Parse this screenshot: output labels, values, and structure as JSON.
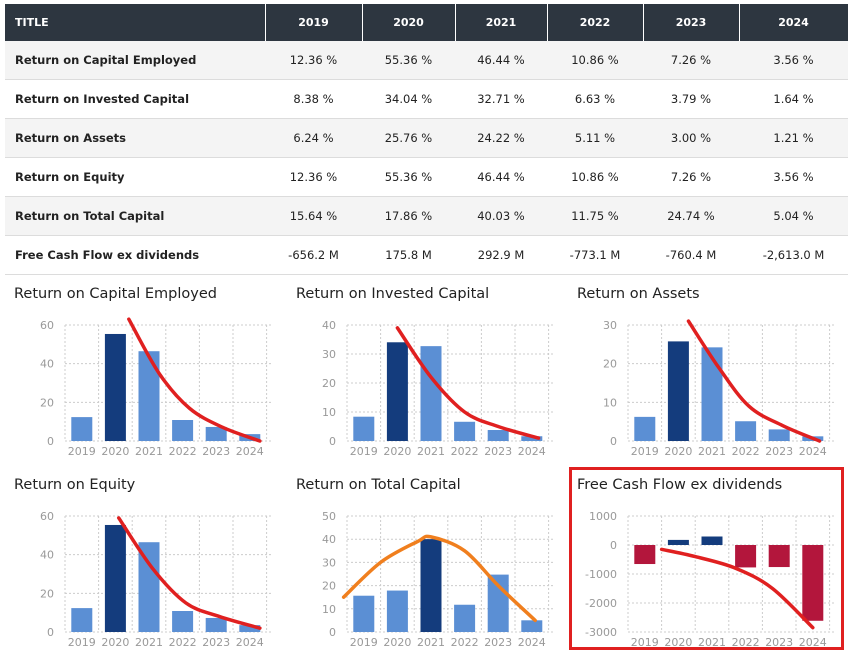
{
  "table": {
    "headers": [
      "TITLE",
      "2019",
      "2020",
      "2021",
      "2022",
      "2023",
      "2024"
    ],
    "rows": [
      {
        "label": "Return on Capital Employed",
        "cells": [
          "12.36 %",
          "55.36 %",
          "46.44 %",
          "10.86 %",
          "7.26 %",
          "3.56 %"
        ]
      },
      {
        "label": "Return on Invested Capital",
        "cells": [
          "8.38 %",
          "34.04 %",
          "32.71 %",
          "6.63 %",
          "3.79 %",
          "1.64 %"
        ]
      },
      {
        "label": "Return on Assets",
        "cells": [
          "6.24 %",
          "25.76 %",
          "24.22 %",
          "5.11 %",
          "3.00 %",
          "1.21 %"
        ]
      },
      {
        "label": "Return on Equity",
        "cells": [
          "12.36 %",
          "55.36 %",
          "46.44 %",
          "10.86 %",
          "7.26 %",
          "3.56 %"
        ]
      },
      {
        "label": "Return on Total Capital",
        "cells": [
          "15.64 %",
          "17.86 %",
          "40.03 %",
          "11.75 %",
          "24.74 %",
          "5.04 %"
        ]
      },
      {
        "label": "Free Cash Flow ex dividends",
        "cells": [
          "-656.2 M",
          "175.8 M",
          "292.9 M",
          "-773.1 M",
          "-760.4 M",
          "-2,613.0 M"
        ]
      }
    ]
  },
  "colors": {
    "bar_light": "#5b8fd4",
    "bar_dark": "#143c7d",
    "bar_negative": "#b3163c",
    "trend_red": "#e02020",
    "trend_orange": "#f07f1e",
    "grid": "#cccccc",
    "highlight_border": "#e02020"
  },
  "chart_data": [
    {
      "type": "bar",
      "title": "Return on Capital Employed",
      "categories": [
        "2019",
        "2020",
        "2021",
        "2022",
        "2023",
        "2024"
      ],
      "values": [
        12.36,
        55.36,
        46.44,
        10.86,
        7.26,
        3.56
      ],
      "highlight_index": 1,
      "yticks": [
        0,
        20,
        40,
        60
      ],
      "ylim": [
        0,
        60
      ],
      "grid": true,
      "trend": {
        "color": "red",
        "points": [
          [
            1.4,
            63
          ],
          [
            2.3,
            35
          ],
          [
            3.2,
            17
          ],
          [
            4.2,
            7
          ],
          [
            5.3,
            0
          ]
        ]
      }
    },
    {
      "type": "bar",
      "title": "Return on Invested Capital",
      "categories": [
        "2019",
        "2020",
        "2021",
        "2022",
        "2023",
        "2024"
      ],
      "values": [
        8.38,
        34.04,
        32.71,
        6.63,
        3.79,
        1.64
      ],
      "highlight_index": 1,
      "yticks": [
        0,
        10,
        20,
        30,
        40
      ],
      "ylim": [
        0,
        40
      ],
      "grid": true,
      "trend": {
        "color": "red",
        "points": [
          [
            1.0,
            39
          ],
          [
            2.0,
            22
          ],
          [
            3.0,
            10
          ],
          [
            4.0,
            5
          ],
          [
            5.2,
            1
          ]
        ]
      }
    },
    {
      "type": "bar",
      "title": "Return on Assets",
      "categories": [
        "2019",
        "2020",
        "2021",
        "2022",
        "2023",
        "2024"
      ],
      "values": [
        6.24,
        25.76,
        24.22,
        5.11,
        3.0,
        1.21
      ],
      "highlight_index": 1,
      "yticks": [
        0,
        10,
        20,
        30
      ],
      "ylim": [
        0,
        30
      ],
      "grid": true,
      "trend": {
        "color": "red",
        "points": [
          [
            1.3,
            31
          ],
          [
            2.2,
            19
          ],
          [
            3.1,
            9
          ],
          [
            4.1,
            4
          ],
          [
            5.2,
            0
          ]
        ]
      }
    },
    {
      "type": "bar",
      "title": "Return on Equity",
      "categories": [
        "2019",
        "2020",
        "2021",
        "2022",
        "2023",
        "2024"
      ],
      "values": [
        12.36,
        55.36,
        46.44,
        10.86,
        7.26,
        3.56
      ],
      "highlight_index": 1,
      "yticks": [
        0,
        20,
        40,
        60
      ],
      "ylim": [
        0,
        60
      ],
      "grid": true,
      "trend": {
        "color": "red",
        "points": [
          [
            1.1,
            59
          ],
          [
            2.1,
            33
          ],
          [
            3.1,
            15
          ],
          [
            4.1,
            8
          ],
          [
            5.3,
            2
          ]
        ]
      }
    },
    {
      "type": "bar",
      "title": "Return on Total Capital",
      "categories": [
        "2019",
        "2020",
        "2021",
        "2022",
        "2023",
        "2024"
      ],
      "values": [
        15.64,
        17.86,
        40.03,
        11.75,
        24.74,
        5.04
      ],
      "highlight_index": 2,
      "yticks": [
        0,
        10,
        20,
        30,
        40,
        50
      ],
      "ylim": [
        0,
        50
      ],
      "grid": true,
      "trend": {
        "color": "orange",
        "points": [
          [
            -0.6,
            15
          ],
          [
            0.5,
            30
          ],
          [
            1.6,
            39
          ],
          [
            2.0,
            41
          ],
          [
            3.0,
            35
          ],
          [
            4.0,
            20
          ],
          [
            5.1,
            5
          ]
        ]
      }
    },
    {
      "type": "bar",
      "title": "Free Cash Flow ex dividends",
      "categories": [
        "2019",
        "2020",
        "2021",
        "2022",
        "2023",
        "2024"
      ],
      "values": [
        -656.2,
        175.8,
        292.9,
        -773.1,
        -760.4,
        -2613.0
      ],
      "yticks": [
        -3000,
        -2000,
        -1000,
        0,
        1000
      ],
      "ylim": [
        -3000,
        1000
      ],
      "grid": true,
      "trend": {
        "color": "red",
        "points": [
          [
            0.5,
            -150
          ],
          [
            1.5,
            -400
          ],
          [
            2.7,
            -800
          ],
          [
            3.8,
            -1500
          ],
          [
            5.0,
            -2850
          ]
        ]
      }
    }
  ]
}
